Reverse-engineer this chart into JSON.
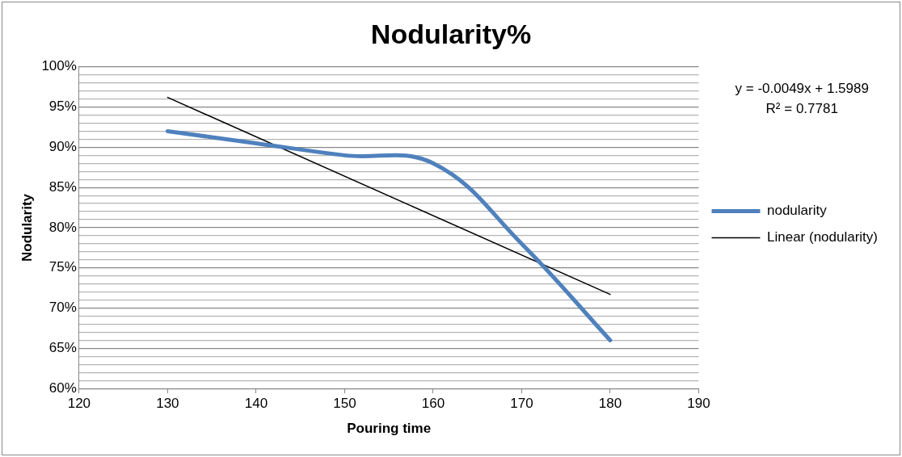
{
  "chart_data": {
    "type": "line",
    "title": "Nodularity%",
    "xlabel": "Pouring time",
    "ylabel": "Nodularity",
    "x": [
      130,
      140,
      150,
      160,
      170,
      180
    ],
    "series": [
      {
        "name": "nodularity",
        "color": "#4f81bd",
        "values": [
          0.92,
          0.905,
          0.89,
          0.88,
          0.78,
          0.66
        ]
      },
      {
        "name": "Linear (nodularity)",
        "type": "line",
        "color": "#000000",
        "x": [
          130,
          180
        ],
        "values": [
          0.962,
          0.717
        ]
      }
    ],
    "annotations": [
      "y = -0.0049x + 1.5989",
      "R² = 0.7781"
    ],
    "xlim": [
      120,
      190
    ],
    "xticks": [
      120,
      130,
      140,
      150,
      160,
      170,
      180,
      190
    ],
    "ylim": [
      0.6,
      1
    ],
    "yticks": [
      {
        "value": 0.6,
        "label": "60%"
      },
      {
        "value": 0.61,
        "label": null
      },
      {
        "value": 0.62,
        "label": null
      },
      {
        "value": 0.63,
        "label": null
      },
      {
        "value": 0.64,
        "label": null
      },
      {
        "value": 0.65,
        "label": "65%"
      },
      {
        "value": 0.66,
        "label": null
      },
      {
        "value": 0.67,
        "label": null
      },
      {
        "value": 0.68,
        "label": null
      },
      {
        "value": 0.69,
        "label": null
      },
      {
        "value": 0.7,
        "label": "70%"
      },
      {
        "value": 0.71,
        "label": null
      },
      {
        "value": 0.72,
        "label": null
      },
      {
        "value": 0.73,
        "label": null
      },
      {
        "value": 0.74,
        "label": null
      },
      {
        "value": 0.75,
        "label": "75%"
      },
      {
        "value": 0.76,
        "label": null
      },
      {
        "value": 0.77,
        "label": null
      },
      {
        "value": 0.78,
        "label": null
      },
      {
        "value": 0.79,
        "label": null
      },
      {
        "value": 0.8,
        "label": "80%"
      },
      {
        "value": 0.81,
        "label": null
      },
      {
        "value": 0.82,
        "label": null
      },
      {
        "value": 0.83,
        "label": null
      },
      {
        "value": 0.84,
        "label": null
      },
      {
        "value": 0.85,
        "label": "85%"
      },
      {
        "value": 0.86,
        "label": null
      },
      {
        "value": 0.87,
        "label": null
      },
      {
        "value": 0.88,
        "label": null
      },
      {
        "value": 0.89,
        "label": null
      },
      {
        "value": 0.9,
        "label": "90%"
      },
      {
        "value": 0.91,
        "label": null
      },
      {
        "value": 0.92,
        "label": null
      },
      {
        "value": 0.93,
        "label": null
      },
      {
        "value": 0.94,
        "label": null
      },
      {
        "value": 0.95,
        "label": "95%"
      },
      {
        "value": 0.96,
        "label": null
      },
      {
        "value": 0.97,
        "label": null
      },
      {
        "value": 0.98,
        "label": null
      },
      {
        "value": 0.99,
        "label": null
      },
      {
        "value": 1,
        "label": "100%"
      }
    ],
    "grid": "y",
    "legend": "right",
    "marker": "none",
    "line_style": "solid"
  }
}
